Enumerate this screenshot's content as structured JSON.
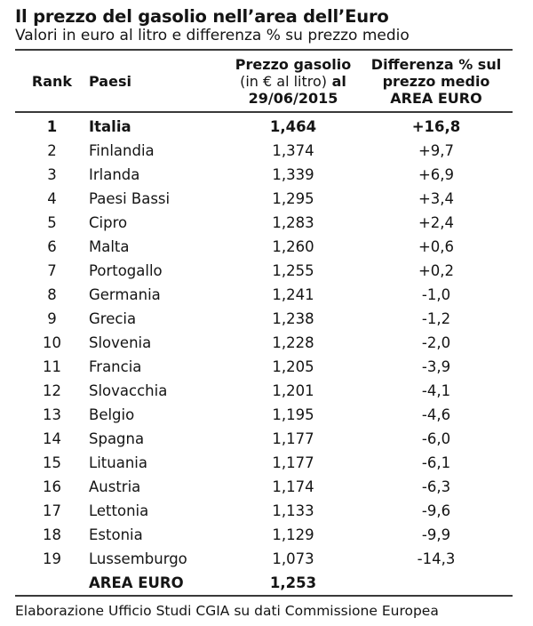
{
  "page": {
    "title": "Il prezzo del gasolio nell’area dell’Euro",
    "subtitle": "Valori in euro al litro e differenza % su prezzo medio"
  },
  "table": {
    "headers": {
      "rank": "Rank",
      "country": "Paesi",
      "price_line1": "Prezzo gasolio",
      "price_line2_normal": "(in € al litro)",
      "price_line2_bold": "al",
      "price_line3": "29/06/2015",
      "diff_line1": "Differenza % sul",
      "diff_line2": "prezzo medio",
      "diff_line3": "AREA EURO"
    },
    "rows": [
      {
        "rank": "1",
        "country": "Italia",
        "price": "1,464",
        "diff": "+16,8",
        "bold": true
      },
      {
        "rank": "2",
        "country": "Finlandia",
        "price": "1,374",
        "diff": "+9,7",
        "bold": false
      },
      {
        "rank": "3",
        "country": "Irlanda",
        "price": "1,339",
        "diff": "+6,9",
        "bold": false
      },
      {
        "rank": "4",
        "country": "Paesi Bassi",
        "price": "1,295",
        "diff": "+3,4",
        "bold": false
      },
      {
        "rank": "5",
        "country": "Cipro",
        "price": "1,283",
        "diff": "+2,4",
        "bold": false
      },
      {
        "rank": "6",
        "country": "Malta",
        "price": "1,260",
        "diff": "+0,6",
        "bold": false
      },
      {
        "rank": "7",
        "country": "Portogallo",
        "price": "1,255",
        "diff": "+0,2",
        "bold": false
      },
      {
        "rank": "8",
        "country": "Germania",
        "price": "1,241",
        "diff": "-1,0",
        "bold": false
      },
      {
        "rank": "9",
        "country": "Grecia",
        "price": "1,238",
        "diff": "-1,2",
        "bold": false
      },
      {
        "rank": "10",
        "country": "Slovenia",
        "price": "1,228",
        "diff": "-2,0",
        "bold": false
      },
      {
        "rank": "11",
        "country": "Francia",
        "price": "1,205",
        "diff": "-3,9",
        "bold": false
      },
      {
        "rank": "12",
        "country": "Slovacchia",
        "price": "1,201",
        "diff": "-4,1",
        "bold": false
      },
      {
        "rank": "13",
        "country": "Belgio",
        "price": "1,195",
        "diff": "-4,6",
        "bold": false
      },
      {
        "rank": "14",
        "country": "Spagna",
        "price": "1,177",
        "diff": "-6,0",
        "bold": false
      },
      {
        "rank": "15",
        "country": "Lituania",
        "price": "1,177",
        "diff": "-6,1",
        "bold": false
      },
      {
        "rank": "16",
        "country": "Austria",
        "price": "1,174",
        "diff": "-6,3",
        "bold": false
      },
      {
        "rank": "17",
        "country": "Lettonia",
        "price": "1,133",
        "diff": "-9,6",
        "bold": false
      },
      {
        "rank": "18",
        "country": "Estonia",
        "price": "1,129",
        "diff": "-9,9",
        "bold": false
      },
      {
        "rank": "19",
        "country": "Lussemburgo",
        "price": "1,073",
        "diff": "-14,3",
        "bold": false
      }
    ],
    "summary_row": {
      "country": "AREA EURO",
      "price": "1,253"
    }
  },
  "footer": {
    "source": "Elaborazione Ufficio Studi CGIA su dati Commissione Europea"
  },
  "colors": {
    "text": "#141414",
    "rule": "#3a3a3a",
    "background": "#ffffff"
  },
  "chart_data": {
    "type": "table",
    "title": "Il prezzo del gasolio nell’area dell’Euro",
    "subtitle": "Valori in euro al litro e differenza % su prezzo medio",
    "columns": [
      "Rank",
      "Paesi",
      "Prezzo gasolio (in € al litro) al 29/06/2015",
      "Differenza % sul prezzo medio AREA EURO"
    ],
    "rows": [
      [
        1,
        "Italia",
        1.464,
        16.8
      ],
      [
        2,
        "Finlandia",
        1.374,
        9.7
      ],
      [
        3,
        "Irlanda",
        1.339,
        6.9
      ],
      [
        4,
        "Paesi Bassi",
        1.295,
        3.4
      ],
      [
        5,
        "Cipro",
        1.283,
        2.4
      ],
      [
        6,
        "Malta",
        1.26,
        0.6
      ],
      [
        7,
        "Portogallo",
        1.255,
        0.2
      ],
      [
        8,
        "Germania",
        1.241,
        -1.0
      ],
      [
        9,
        "Grecia",
        1.238,
        -1.2
      ],
      [
        10,
        "Slovenia",
        1.228,
        -2.0
      ],
      [
        11,
        "Francia",
        1.205,
        -3.9
      ],
      [
        12,
        "Slovacchia",
        1.201,
        -4.1
      ],
      [
        13,
        "Belgio",
        1.195,
        -4.6
      ],
      [
        14,
        "Spagna",
        1.177,
        -6.0
      ],
      [
        15,
        "Lituania",
        1.177,
        -6.1
      ],
      [
        16,
        "Austria",
        1.174,
        -6.3
      ],
      [
        17,
        "Lettonia",
        1.133,
        -9.6
      ],
      [
        18,
        "Estonia",
        1.129,
        -9.9
      ],
      [
        19,
        "Lussemburgo",
        1.073,
        -14.3
      ]
    ],
    "summary": {
      "label": "AREA EURO",
      "price": 1.253
    },
    "source": "Elaborazione Ufficio Studi CGIA su dati Commissione Europea"
  }
}
